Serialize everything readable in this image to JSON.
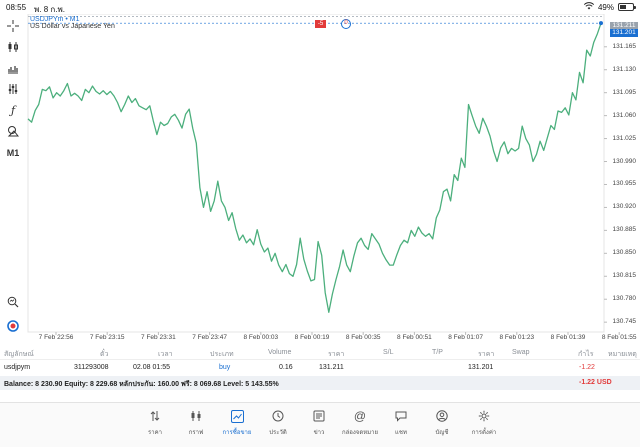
{
  "status_bar": {
    "time": "08:55",
    "date": "พ. 8 ก.พ.",
    "battery": "49%",
    "battery_level": 0.49
  },
  "chart": {
    "symbol_line": "USDJPYm • M1",
    "description": "US Dollar vs Japanese Yen",
    "order_a": "-5",
    "order_b": "0",
    "bid_price": "131.201",
    "ask_price": "131.211"
  },
  "chart_data": {
    "type": "line",
    "x_labels": [
      "7 Feb 22:56",
      "7 Feb 23:15",
      "7 Feb 23:31",
      "7 Feb 23:47",
      "8 Feb 00:03",
      "8 Feb 00:19",
      "8 Feb 00:35",
      "8 Feb 00:51",
      "8 Feb 01:07",
      "8 Feb 01:23",
      "8 Feb 01:39",
      "8 Feb 01:55"
    ],
    "y_ticks": [
      "131.165",
      "131.130",
      "131.095",
      "131.060",
      "131.025",
      "130.990",
      "130.955",
      "130.920",
      "130.885",
      "130.850",
      "130.815",
      "130.780",
      "130.745"
    ],
    "ylim": [
      130.73,
      131.215
    ],
    "values": [
      131.055,
      131.05,
      131.068,
      131.077,
      131.1,
      131.098,
      131.104,
      131.087,
      131.095,
      131.09,
      131.098,
      131.109,
      131.09,
      131.094,
      131.09,
      131.083,
      131.1,
      131.095,
      131.105,
      131.097,
      131.093,
      131.098,
      131.092,
      131.097,
      131.09,
      131.08,
      131.066,
      131.077,
      131.09,
      131.08,
      131.086,
      131.075,
      131.072,
      131.069,
      131.075,
      131.052,
      131.031,
      131.05,
      131.045,
      131.048,
      131.058,
      131.062,
      131.053,
      131.041,
      131.062,
      131.07,
      131.041,
      131.018,
      130.95,
      130.92,
      130.944,
      130.914,
      130.93,
      130.96,
      130.93,
      130.92,
      130.9,
      130.912,
      130.888,
      130.87,
      130.878,
      130.866,
      130.872,
      130.863,
      130.886,
      130.864,
      130.852,
      130.858,
      130.838,
      130.85,
      130.832,
      130.822,
      130.833,
      130.819,
      130.815,
      130.833,
      130.873,
      130.841,
      130.823,
      130.808,
      130.81,
      130.868,
      130.847,
      130.79,
      130.76,
      130.788,
      130.81,
      130.83,
      130.855,
      130.832,
      130.822,
      130.846,
      130.866,
      130.873,
      130.862,
      130.856,
      130.88,
      130.872,
      130.864,
      130.85,
      130.84,
      130.832,
      130.832,
      130.848,
      130.862,
      130.87,
      130.866,
      130.885,
      130.876,
      130.89,
      130.881,
      130.876,
      130.88,
      130.872,
      130.904,
      130.916,
      130.944,
      130.948,
      130.93,
      130.97,
      130.961,
      130.995,
      130.981,
      131.077,
      131.06,
      131.044,
      131.033,
      131.056,
      131.044,
      131.029,
      131.006,
      130.99,
      131.011,
      131.02,
      131.002,
      131.01,
      131.006,
      131.01,
      131.044,
      131.025,
      131.015,
      130.99,
      131.001,
      131.021,
      131.007,
      131.026,
      131.045,
      131.039,
      131.067,
      131.065,
      131.072,
      131.061,
      131.095,
      131.084,
      131.126,
      131.11,
      131.16,
      131.151,
      131.172,
      131.185,
      131.201
    ]
  },
  "positions": {
    "headers": [
      "สัญลักษณ์",
      "ตั๋ว",
      "เวลา",
      "ประเภท",
      "Volume",
      "ราคา",
      "S/L",
      "T/P",
      "ราคา",
      "Swap",
      "กำไร",
      "หมายเหตุ"
    ],
    "row": {
      "symbol": "usdjpym",
      "ticket": "311293008",
      "time": "02.08 01:55",
      "type": "buy",
      "volume": "0.16",
      "open_price": "131.211",
      "sl": "",
      "tp": "",
      "price": "131.201",
      "swap": "",
      "profit": "-1.22"
    },
    "balance_text": "Balance: 8 230.90 Equity: 8 229.68 หลักประกัน: 160.00 ฟรี: 8 069.68 Level: 5 143.55%",
    "total_profit": "-1.22 USD"
  },
  "tabs": [
    {
      "label": "ราคา",
      "icon": "arrows-updown-icon"
    },
    {
      "label": "กราฟ",
      "icon": "candlestick-icon"
    },
    {
      "label": "การซื้อขาย",
      "icon": "trade-chart-icon"
    },
    {
      "label": "ประวัติ",
      "icon": "history-icon"
    },
    {
      "label": "ข่าว",
      "icon": "news-icon"
    },
    {
      "label": "กล่องจดหมาย",
      "icon": "mailbox-icon"
    },
    {
      "label": "แชท",
      "icon": "chat-icon"
    },
    {
      "label": "บัญชี",
      "icon": "account-icon"
    },
    {
      "label": "การตั้งค่า",
      "icon": "gear-icon"
    }
  ],
  "colors": {
    "line": "#4caf7d",
    "accent": "#1a6fd1",
    "negative": "#e23b3b"
  }
}
